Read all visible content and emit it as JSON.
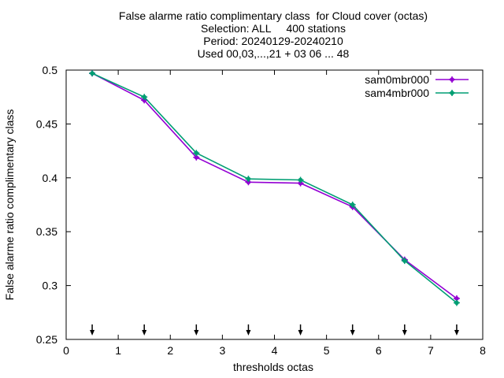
{
  "chart_data": {
    "type": "line",
    "title_lines": [
      "False alarme ratio complimentary class  for Cloud cover (octas)",
      "Selection: ALL     400 stations",
      "Period: 20240129-20240210",
      "Used 00,03,...,21 + 03 06 ... 48"
    ],
    "xlabel": "thresholds octas",
    "ylabel": "False alarme ratio complimentary class",
    "xlim": [
      0,
      8
    ],
    "ylim": [
      0.25,
      0.5
    ],
    "x_ticks": [
      0,
      1,
      2,
      3,
      4,
      5,
      6,
      7,
      8
    ],
    "x_tick_labels": [
      "0",
      "1",
      "2",
      "3",
      "4",
      "5",
      "6",
      "7",
      "8"
    ],
    "y_ticks": [
      0.25,
      0.3,
      0.35,
      0.4,
      0.45,
      0.5
    ],
    "y_tick_labels": [
      "0.25",
      "0.3",
      "0.35",
      "0.4",
      "0.45",
      "0.5"
    ],
    "legend_position": "top-right",
    "grid": false,
    "x": [
      0.5,
      1.5,
      2.5,
      3.5,
      4.5,
      5.5,
      6.5,
      7.5
    ],
    "series": [
      {
        "name": "sam0mbr000",
        "color": "#9400d3",
        "values": [
          0.497,
          0.472,
          0.419,
          0.396,
          0.395,
          0.373,
          0.324,
          0.288
        ]
      },
      {
        "name": "sam4mbr000",
        "color": "#009e73",
        "values": [
          0.497,
          0.475,
          0.423,
          0.399,
          0.398,
          0.375,
          0.323,
          0.284
        ]
      }
    ],
    "arrow_markers_x": [
      0.5,
      1.5,
      2.5,
      3.5,
      4.5,
      5.5,
      6.5,
      7.5
    ]
  }
}
